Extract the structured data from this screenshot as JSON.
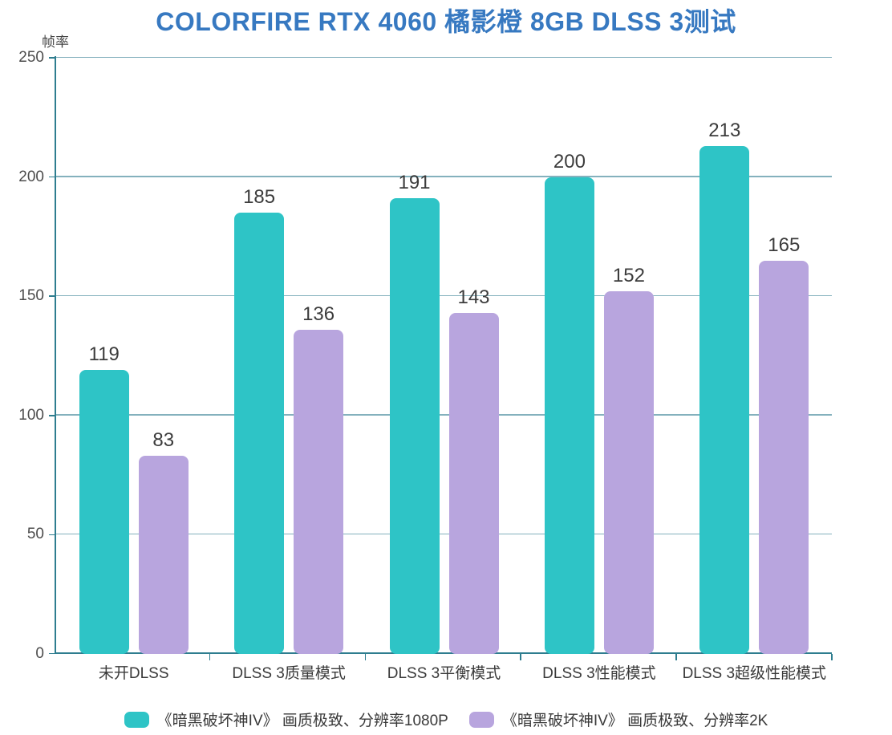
{
  "chart_data": {
    "type": "bar",
    "title": "COLORFIRE RTX 4060 橘影橙 8GB DLSS 3测试",
    "ylabel": "帧率",
    "xlabel": "",
    "categories": [
      "未开DLSS",
      "DLSS 3质量模式",
      "DLSS 3平衡模式",
      "DLSS 3性能模式",
      "DLSS 3超级性能模式"
    ],
    "series": [
      {
        "name": "《暗黑破坏神IV》 画质极致、分辨率1080P",
        "color": "#2ec4c6",
        "values": [
          119,
          185,
          191,
          200,
          213
        ]
      },
      {
        "name": "《暗黑破坏神IV》 画质极致、分辨率2K",
        "color": "#b8a5de",
        "values": [
          83,
          136,
          143,
          152,
          165
        ]
      }
    ],
    "ylim": [
      0,
      250
    ],
    "yticks": [
      0,
      50,
      100,
      150,
      200,
      250
    ],
    "grid": "horizontal",
    "legend_position": "bottom",
    "value_labels": "above-bars"
  },
  "colors": {
    "title": "#3779c1",
    "axis": "#2e7d8f",
    "gridline": "#6fa3b1",
    "value_label": "#3c3c3c",
    "tick_label": "#4d4d4d",
    "series_1080p": "#2ec4c6",
    "series_2k": "#b8a5de"
  }
}
